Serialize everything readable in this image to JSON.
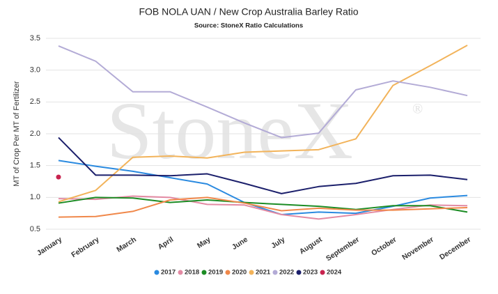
{
  "chart_data": {
    "type": "line",
    "title": "FOB NOLA UAN / New Crop Australia Barley Ratio",
    "subtitle": "Source: StoneX Ratio Calculations",
    "y_label": "MT of Crop Per MT of Fertilizer",
    "watermark": "StoneX",
    "watermark_symbol": "®",
    "categories": [
      "January",
      "February",
      "March",
      "April",
      "May",
      "June",
      "July",
      "August",
      "September",
      "October",
      "November",
      "December"
    ],
    "ylim": [
      0.5,
      3.5
    ],
    "yticks": [
      0.5,
      {
        "value": 1,
        "label": "1.0"
      },
      1.5,
      {
        "value": 2,
        "label": "2.0"
      },
      2.5,
      {
        "value": 3,
        "label": "3.0"
      },
      3.5
    ],
    "grid": true,
    "legend": "bottom",
    "series": [
      {
        "name": "2017",
        "color": "#2a8ae0",
        "values": [
          1.58,
          1.49,
          1.41,
          1.31,
          1.21,
          0.92,
          0.73,
          0.77,
          0.75,
          0.86,
          0.99,
          1.03
        ]
      },
      {
        "name": "2018",
        "color": "#e38aa3",
        "values": [
          0.98,
          0.97,
          1.02,
          1.0,
          0.89,
          0.88,
          0.73,
          0.66,
          0.73,
          0.81,
          0.88,
          0.87
        ]
      },
      {
        "name": "2019",
        "color": "#1c8c24",
        "values": [
          0.91,
          1.0,
          0.99,
          0.92,
          0.96,
          0.92,
          0.89,
          0.86,
          0.81,
          0.87,
          0.87,
          0.77
        ]
      },
      {
        "name": "2020",
        "color": "#f0884a",
        "values": [
          0.69,
          0.7,
          0.78,
          0.96,
          1.0,
          0.91,
          0.79,
          0.83,
          0.8,
          0.8,
          0.82,
          0.84
        ]
      },
      {
        "name": "2021",
        "color": "#f2b35a",
        "values": [
          0.93,
          1.11,
          1.63,
          1.65,
          1.62,
          1.71,
          1.73,
          1.75,
          1.92,
          2.76,
          3.07,
          3.39
        ]
      },
      {
        "name": "2022",
        "color": "#b3abd6",
        "values": [
          3.38,
          3.14,
          2.66,
          2.66,
          2.42,
          2.17,
          1.94,
          2.01,
          2.69,
          2.83,
          2.73,
          2.6
        ]
      },
      {
        "name": "2023",
        "color": "#1b1f6b",
        "values": [
          1.94,
          1.35,
          1.35,
          1.34,
          1.37,
          1.22,
          1.06,
          1.17,
          1.22,
          1.34,
          1.35,
          1.28
        ]
      },
      {
        "name": "2024",
        "color": "#c8234f",
        "values": [
          1.32,
          null,
          null,
          null,
          null,
          null,
          null,
          null,
          null,
          null,
          null,
          null
        ]
      }
    ]
  }
}
